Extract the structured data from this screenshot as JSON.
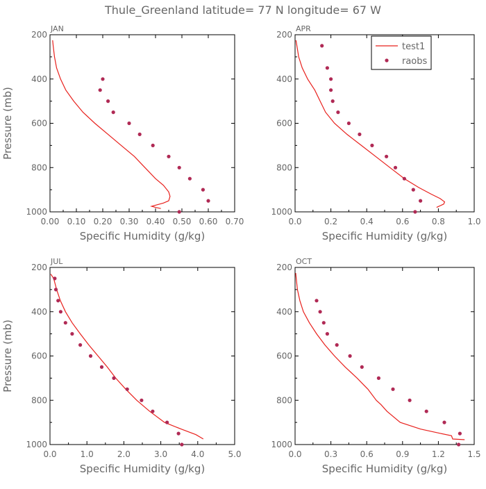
{
  "title": "Thule_Greenland  latitude= 77 N longitude= 67 W",
  "colors": {
    "model": "#e8201c",
    "obs": "#b02a55",
    "text": "#666666",
    "axis": "#000000"
  },
  "legend": {
    "model_label": "test1",
    "obs_label": "raobs"
  },
  "chart_data": [
    {
      "type": "line",
      "panel": "JAN",
      "title": "JAN",
      "xlabel": "Specific Humidity (g/kg)",
      "ylabel": "Pressure (mb)",
      "xlim": [
        0,
        0.7
      ],
      "ylim": [
        1000,
        200
      ],
      "xticks": [
        0.0,
        0.1,
        0.2,
        0.3,
        0.4,
        0.5,
        0.6,
        0.7
      ],
      "xtick_labels": [
        "0.00",
        "0.10",
        "0.20",
        "0.30",
        "0.40",
        "0.50",
        "0.60",
        "0.70"
      ],
      "yticks": [
        200,
        400,
        600,
        800,
        1000
      ],
      "ytick_labels": [
        "200",
        "400",
        "600",
        "800",
        "1000"
      ],
      "series": [
        {
          "name": "test1",
          "kind": "line",
          "x": [
            0.01,
            0.012,
            0.017,
            0.025,
            0.04,
            0.06,
            0.09,
            0.125,
            0.17,
            0.22,
            0.27,
            0.32,
            0.36,
            0.4,
            0.43,
            0.45,
            0.455,
            0.45,
            0.43,
            0.4,
            0.385,
            0.4,
            0.42
          ],
          "y": [
            225,
            250,
            300,
            350,
            400,
            450,
            500,
            550,
            600,
            650,
            700,
            750,
            800,
            850,
            880,
            910,
            930,
            950,
            960,
            970,
            975,
            980,
            985
          ]
        },
        {
          "name": "raobs",
          "kind": "scatter",
          "x": [
            0.2,
            0.19,
            0.22,
            0.24,
            0.3,
            0.34,
            0.39,
            0.45,
            0.49,
            0.53,
            0.58,
            0.6,
            0.49
          ],
          "y": [
            400,
            450,
            500,
            550,
            600,
            650,
            700,
            750,
            800,
            850,
            900,
            950,
            1000
          ]
        }
      ]
    },
    {
      "type": "line",
      "panel": "APR",
      "title": "APR",
      "xlabel": "Specific Humidity (g/kg)",
      "ylabel": "",
      "xlim": [
        0,
        1.0
      ],
      "ylim": [
        1000,
        200
      ],
      "xticks": [
        0.0,
        0.2,
        0.4,
        0.6,
        0.8,
        1.0
      ],
      "xtick_labels": [
        "0.0",
        "0.2",
        "0.4",
        "0.6",
        "0.8",
        "1.0"
      ],
      "yticks": [
        200,
        400,
        600,
        800,
        1000
      ],
      "ytick_labels": [
        "200",
        "400",
        "600",
        "800",
        "1000"
      ],
      "series": [
        {
          "name": "test1",
          "kind": "line",
          "x": [
            0.005,
            0.01,
            0.02,
            0.04,
            0.07,
            0.11,
            0.14,
            0.17,
            0.22,
            0.29,
            0.37,
            0.45,
            0.53,
            0.61,
            0.69,
            0.76,
            0.81,
            0.835,
            0.83,
            0.79
          ],
          "y": [
            225,
            250,
            300,
            350,
            400,
            450,
            500,
            550,
            600,
            650,
            700,
            750,
            800,
            850,
            890,
            920,
            940,
            955,
            965,
            980
          ]
        },
        {
          "name": "raobs",
          "kind": "scatter",
          "x": [
            0.15,
            0.18,
            0.2,
            0.2,
            0.21,
            0.24,
            0.3,
            0.36,
            0.43,
            0.51,
            0.56,
            0.61,
            0.66,
            0.7,
            0.67
          ],
          "y": [
            250,
            350,
            400,
            450,
            500,
            550,
            600,
            650,
            700,
            750,
            800,
            850,
            900,
            950,
            1000
          ]
        }
      ]
    },
    {
      "type": "line",
      "panel": "JUL",
      "title": "JUL",
      "xlabel": "Specific Humidity (g/kg)",
      "ylabel": "Pressure (mb)",
      "xlim": [
        0,
        5.0
      ],
      "ylim": [
        1000,
        200
      ],
      "xticks": [
        0.0,
        1.0,
        2.0,
        3.0,
        4.0,
        5.0
      ],
      "xtick_labels": [
        "0.0",
        "1.0",
        "2.0",
        "3.0",
        "4.0",
        "5.0"
      ],
      "yticks": [
        200,
        400,
        600,
        800,
        1000
      ],
      "ytick_labels": [
        "200",
        "400",
        "600",
        "800",
        "1000"
      ],
      "series": [
        {
          "name": "test1",
          "kind": "line",
          "x": [
            0.02,
            0.1,
            0.18,
            0.28,
            0.42,
            0.6,
            0.82,
            1.05,
            1.3,
            1.55,
            1.78,
            2.05,
            2.35,
            2.7,
            3.1,
            3.55,
            3.95,
            4.15
          ],
          "y": [
            230,
            250,
            300,
            350,
            400,
            450,
            500,
            550,
            600,
            650,
            700,
            750,
            800,
            850,
            900,
            930,
            955,
            975
          ]
        },
        {
          "name": "raobs",
          "kind": "scatter",
          "x": [
            0.13,
            0.16,
            0.22,
            0.29,
            0.42,
            0.6,
            0.82,
            1.1,
            1.4,
            1.73,
            2.09,
            2.48,
            2.78,
            3.17,
            3.48,
            3.57
          ],
          "y": [
            250,
            300,
            350,
            400,
            450,
            500,
            550,
            600,
            650,
            700,
            750,
            800,
            850,
            900,
            950,
            1000
          ]
        }
      ]
    },
    {
      "type": "line",
      "panel": "OCT",
      "title": "OCT",
      "xlabel": "Specific Humidity (g/kg)",
      "ylabel": "",
      "xlim": [
        0,
        1.5
      ],
      "ylim": [
        1000,
        200
      ],
      "xticks": [
        0.0,
        0.3,
        0.6,
        0.9,
        1.2,
        1.5
      ],
      "xtick_labels": [
        "0.0",
        "0.3",
        "0.6",
        "0.9",
        "1.2",
        "1.5"
      ],
      "yticks": [
        200,
        400,
        600,
        800,
        1000
      ],
      "ytick_labels": [
        "200",
        "400",
        "600",
        "800",
        "1000"
      ],
      "series": [
        {
          "name": "test1",
          "kind": "line",
          "x": [
            0.005,
            0.01,
            0.02,
            0.04,
            0.07,
            0.12,
            0.18,
            0.25,
            0.33,
            0.42,
            0.52,
            0.61,
            0.68,
            0.72,
            0.77,
            0.88,
            1.05,
            1.22,
            1.31,
            1.32,
            1.42
          ],
          "y": [
            225,
            250,
            300,
            350,
            400,
            450,
            500,
            550,
            600,
            650,
            700,
            750,
            800,
            820,
            850,
            900,
            930,
            950,
            960,
            975,
            978
          ]
        },
        {
          "name": "raobs",
          "kind": "scatter",
          "x": [
            0.18,
            0.21,
            0.24,
            0.27,
            0.35,
            0.46,
            0.56,
            0.7,
            0.82,
            0.96,
            1.1,
            1.25,
            1.38,
            1.37
          ],
          "y": [
            350,
            400,
            450,
            500,
            550,
            600,
            650,
            700,
            750,
            800,
            850,
            900,
            950,
            1000
          ]
        }
      ]
    }
  ]
}
